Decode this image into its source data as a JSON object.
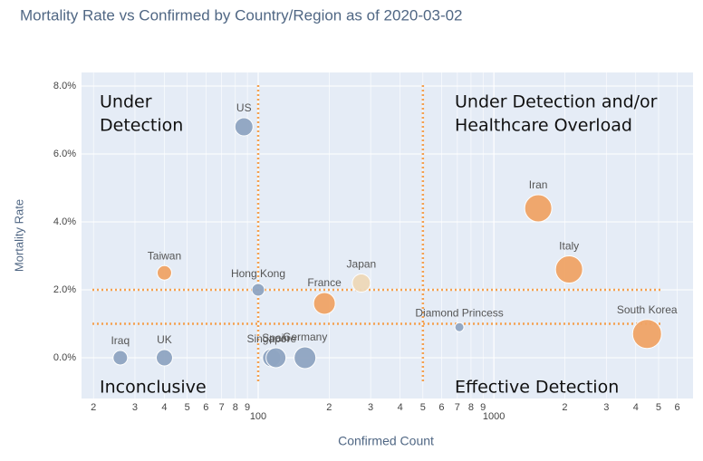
{
  "chart_data": {
    "type": "scatter",
    "title": "Mortality Rate vs Confirmed by Country/Region as of 2020-03-02",
    "x_label": "Confirmed Count",
    "y_label": "Mortality Rate",
    "x_log": true,
    "grid": true,
    "names": [
      "US",
      "Taiwan",
      "Hong Kong",
      "Iraq",
      "UK",
      "Singapore",
      "Spain",
      "Germany",
      "France",
      "Japan",
      "Diamond Princess",
      "Iran",
      "Italy",
      "South Korea"
    ],
    "x": [
      87,
      40,
      100,
      26,
      40,
      114,
      119,
      158,
      191,
      274,
      714,
      1543,
      2085,
      4467
    ],
    "values": [
      6.8,
      2.5,
      2.0,
      0,
      0,
      0,
      0,
      0,
      1.6,
      2.2,
      0.9,
      4.4,
      2.6,
      0.7
    ],
    "sizes": [
      20,
      16,
      14,
      16,
      18,
      20,
      22,
      24,
      24,
      20,
      10,
      30,
      30,
      32
    ],
    "colors": [
      "#8fa5c2",
      "#f0a466",
      "#8fa5c2",
      "#8fa5c2",
      "#8fa5c2",
      "#8fa5c2",
      "#8fa5c2",
      "#8fa5c2",
      "#f0a466",
      "#eed8b8",
      "#8fa5c2",
      "#f0a466",
      "#f0a466",
      "#f0a466"
    ],
    "xlim": [
      17.8,
      7000
    ],
    "ylim": [
      -1.2,
      8.4
    ],
    "xticks": [
      {
        "value": 20,
        "label": "2"
      },
      {
        "value": 30,
        "label": "3"
      },
      {
        "value": 40,
        "label": "4"
      },
      {
        "value": 50,
        "label": "5"
      },
      {
        "value": 60,
        "label": "6"
      },
      {
        "value": 70,
        "label": "7"
      },
      {
        "value": 80,
        "label": "8"
      },
      {
        "value": 90,
        "label": "9"
      },
      100,
      {
        "value": 200,
        "label": "2"
      },
      {
        "value": 300,
        "label": "3"
      },
      {
        "value": 400,
        "label": "4"
      },
      {
        "value": 500,
        "label": "5"
      },
      {
        "value": 600,
        "label": "6"
      },
      {
        "value": 700,
        "label": "7"
      },
      {
        "value": 800,
        "label": "8"
      },
      {
        "value": 900,
        "label": "9"
      },
      1000,
      {
        "value": 2000,
        "label": "2"
      },
      {
        "value": 3000,
        "label": "3"
      },
      {
        "value": 4000,
        "label": "4"
      },
      {
        "value": 5000,
        "label": "5"
      },
      {
        "value": 6000,
        "label": "6"
      }
    ],
    "yticks": [
      {
        "value": 0,
        "label": "0.0%"
      },
      {
        "value": 2,
        "label": "2.0%"
      },
      {
        "value": 4,
        "label": "4.0%"
      },
      {
        "value": 6,
        "label": "6.0%"
      },
      {
        "value": 8,
        "label": "8.0%"
      }
    ],
    "vlines": [
      100,
      500
    ],
    "hlines": [
      2,
      1
    ],
    "line_color": "#f5a04f",
    "annotations": [
      {
        "lines": [
          "Under",
          "Detection"
        ]
      },
      {
        "lines": [
          "Under Detection and/or",
          "Healthcare Overload"
        ]
      },
      {
        "lines": [
          "Inconclusive"
        ]
      },
      {
        "lines": [
          "Effective Detection"
        ]
      }
    ]
  }
}
